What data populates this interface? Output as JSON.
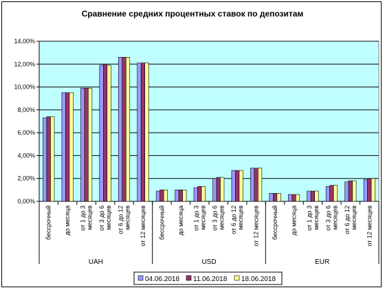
{
  "chart_data": {
    "type": "bar",
    "title": "Сравнение средних процентных ставок по депозитам",
    "ylim": [
      0,
      14
    ],
    "yticks": [
      "0,00%",
      "2,00%",
      "4,00%",
      "6,00%",
      "8,00%",
      "10,00%",
      "12,00%",
      "14,00%"
    ],
    "grid": true,
    "legend_position": "bottom",
    "groups": [
      {
        "name": "UAH",
        "categories": [
          "бессрочный",
          "до месяца",
          "от 1 до 3 месяцев",
          "от 3 до 6 месяцев",
          "от 6 до 12 месяцев",
          "от 12 месяцев"
        ]
      },
      {
        "name": "USD",
        "categories": [
          "бессрочный",
          "до месяца",
          "от 1 до 3 месяцев",
          "от 3 до 6 месяцев",
          "от 6 до 12 месяцев",
          "от 12 месяцев"
        ]
      },
      {
        "name": "EUR",
        "categories": [
          "бессрочный",
          "до месяца",
          "от 1 до 3 месяцев",
          "от 3 до 6 месяцев",
          "от 6 до 12 месяцев",
          "от 12 месяцев"
        ]
      }
    ],
    "series": [
      {
        "name": "04.06.2018",
        "color": "#9999FF",
        "values": [
          7.3,
          9.5,
          9.9,
          11.9,
          12.6,
          12.1,
          0.9,
          1.0,
          1.2,
          2.0,
          2.7,
          2.9,
          0.7,
          0.6,
          0.9,
          1.3,
          1.7,
          1.9
        ]
      },
      {
        "name": "11.06.2018",
        "color": "#993366",
        "values": [
          7.4,
          9.5,
          9.9,
          12.0,
          12.6,
          12.1,
          1.0,
          1.0,
          1.3,
          2.1,
          2.7,
          2.9,
          0.7,
          0.6,
          0.9,
          1.4,
          1.8,
          2.0
        ]
      },
      {
        "name": "18.06.2018",
        "color": "#FFFF99",
        "values": [
          7.4,
          9.5,
          9.9,
          11.9,
          12.6,
          12.1,
          1.0,
          1.0,
          1.3,
          2.1,
          2.7,
          2.9,
          0.7,
          0.6,
          0.9,
          1.4,
          1.8,
          2.0
        ]
      }
    ]
  }
}
